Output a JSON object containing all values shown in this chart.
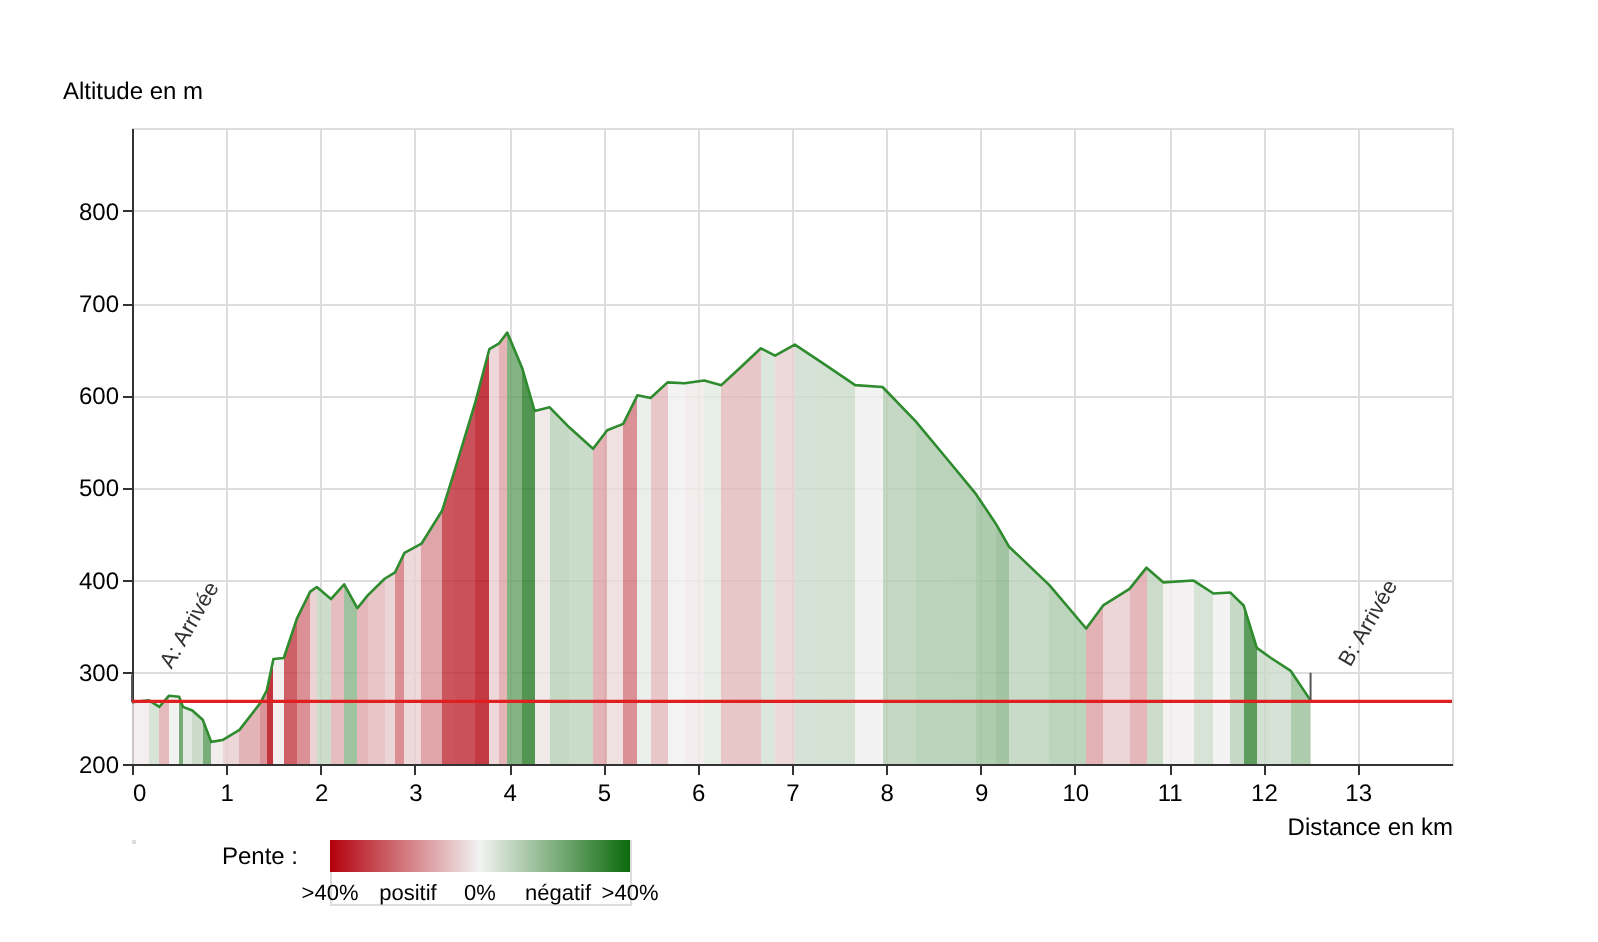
{
  "chart_data": {
    "type": "area",
    "xlabel": "Distance en km",
    "ylabel": "Altitude en m",
    "clabel": "Pente :",
    "clim": [
      40,
      -40
    ],
    "cticks": [
      {
        "value": 40,
        "label": ">40%"
      },
      {
        "value": 0,
        "label": "0%"
      },
      {
        "value": -40,
        "label": ">40%"
      }
    ],
    "x": [
      0,
      0.18,
      0.29,
      0.39,
      0.5,
      0.54,
      0.64,
      0.75,
      0.84,
      0.96,
      1.14,
      1.36,
      1.43,
      1.5,
      1.61,
      1.75,
      1.89,
      1.96,
      2.11,
      2.25,
      2.39,
      2.5,
      2.68,
      2.79,
      2.89,
      3.07,
      3.29,
      3.43,
      3.64,
      3.79,
      3.89,
      3.98,
      4.14,
      4.27,
      4.43,
      4.64,
      4.89,
      5.04,
      5.21,
      5.36,
      5.5,
      5.68,
      5.86,
      6.07,
      6.25,
      6.43,
      6.67,
      6.82,
      7.03,
      7.31,
      7.67,
      7.96,
      8.31,
      8.66,
      8.95,
      9.16,
      9.3,
      9.73,
      10.12,
      10.3,
      10.58,
      10.76,
      10.94,
      11.26,
      11.47,
      11.65,
      11.79,
      11.93,
      12.08,
      12.29,
      12.5
    ],
    "series": [
      {
        "color": "#2e8b2e",
        "values": [
          267,
          269,
          262,
          274,
          273,
          262,
          258,
          248,
          224,
          226,
          237,
          266,
          280,
          314,
          315,
          358,
          387,
          392,
          379,
          395,
          369,
          383,
          401,
          408,
          429,
          439,
          475,
          521,
          592,
          650,
          656,
          668,
          629,
          583,
          587,
          565,
          542,
          562,
          569,
          600,
          597,
          614,
          613,
          616,
          611,
          628,
          651,
          643,
          655,
          636,
          611,
          609,
          572,
          529,
          493,
          461,
          436,
          394,
          347,
          372,
          390,
          413,
          397,
          399,
          385,
          386,
          372,
          326,
          315,
          301,
          269
        ]
      }
    ],
    "xlim": [
      0,
      14
    ],
    "xticks": [
      0,
      1,
      2,
      3,
      4,
      5,
      6,
      7,
      8,
      9,
      10,
      11,
      12,
      13
    ],
    "ylim": [
      200,
      890
    ],
    "yticks": [
      200,
      300,
      400,
      500,
      600,
      700,
      800
    ],
    "ref_lines": [
      {
        "axis": "y",
        "value": 268,
        "color": "#e02020"
      }
    ],
    "annotations": [
      {
        "text": "A: Arrivée",
        "x": 0,
        "y": 267
      },
      {
        "text": "B: Arrivée",
        "x": 12.5,
        "y": 269
      },
      "positif",
      "négatif"
    ],
    "grid": true
  }
}
